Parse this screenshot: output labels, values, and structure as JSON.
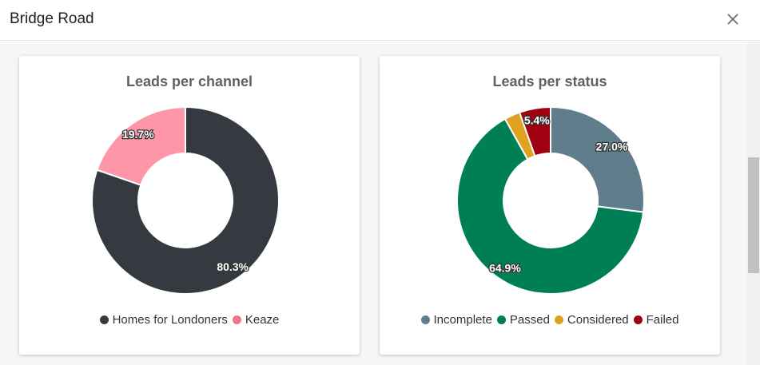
{
  "header": {
    "title": "Bridge Road"
  },
  "charts": [
    {
      "title": "Leads per channel",
      "chart_data": {
        "type": "pie",
        "title": "Leads per channel",
        "categories": [
          "Homes for Londoners",
          "Keaze"
        ],
        "values": [
          80.3,
          19.7
        ],
        "labels": [
          "80.3%",
          "19.7%"
        ],
        "colors": [
          "#343a40",
          "#ff96a8"
        ],
        "legend_colors": [
          "#343a40",
          "#f4748c"
        ],
        "legend": "bottom"
      }
    },
    {
      "title": "Leads per status",
      "chart_data": {
        "type": "pie",
        "title": "Leads per status",
        "categories": [
          "Incomplete",
          "Passed",
          "Considered",
          "Failed"
        ],
        "values": [
          27.0,
          64.9,
          2.7,
          5.4
        ],
        "labels": [
          "27.0%",
          "64.9%",
          "",
          "5.4%"
        ],
        "colors": [
          "#607d8b",
          "#007e55",
          "#dfa21e",
          "#a00010"
        ],
        "legend_colors": [
          "#607d8b",
          "#007e55",
          "#dfa21e",
          "#a00010"
        ],
        "legend": "bottom"
      }
    }
  ]
}
